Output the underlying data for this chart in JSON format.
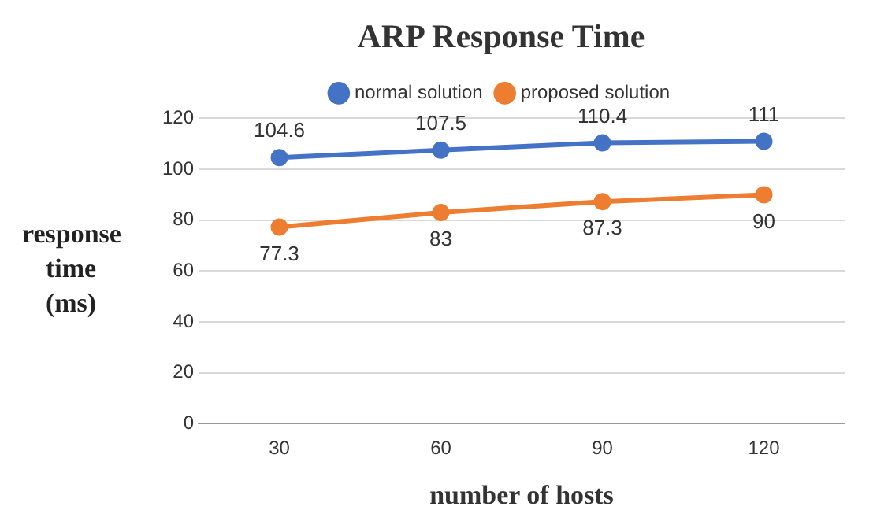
{
  "chart_data": {
    "type": "line",
    "title": "ARP Response Time",
    "xlabel": "number of hosts",
    "ylabel": "response time (ms)",
    "categories": [
      "30",
      "60",
      "90",
      "120"
    ],
    "series": [
      {
        "name": "normal solution",
        "color": "#4472c4",
        "values": [
          104.6,
          107.5,
          110.4,
          111
        ]
      },
      {
        "name": "proposed solution",
        "color": "#ed7d31",
        "values": [
          77.3,
          83,
          87.3,
          90
        ]
      }
    ],
    "ylim": [
      0,
      120
    ],
    "yticks": [
      0,
      20,
      40,
      60,
      80,
      100,
      120
    ],
    "grid": "y",
    "legend": "top",
    "marker": "circle",
    "line_style": "solid",
    "data_labels": true
  }
}
